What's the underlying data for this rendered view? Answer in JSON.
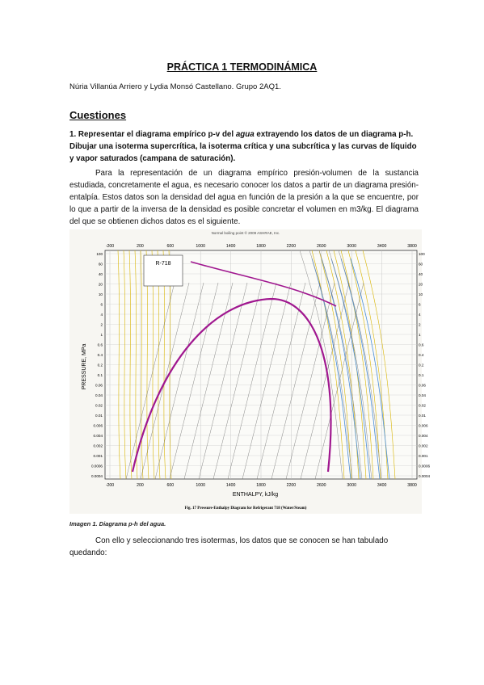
{
  "document": {
    "title": "PRÁCTICA 1 TERMODINÁMICA",
    "authors": "Núria Villanúa Arriero y Lydia Monsó Castellano. Grupo 2AQ1.",
    "section_heading": "Cuestiones",
    "question": {
      "number": "1.",
      "part1": "Representar el diagrama empírico p-v del ",
      "italic": "agua",
      "part2": " extrayendo los datos de un diagrama p-h. Dibujar una isoterma supercrítica, la isoterma crítica y una subcrítica y las curvas de líquido y vapor saturados (campana de saturación)."
    },
    "paragraph1": "Para la representación de un diagrama empírico presión-volumen de la sustancia estudiada, concretamente el agua, es necesario conocer los datos a partir de un diagrama presión-entalpía. Estos datos son la densidad del agua en función de la presión a la que se encuentre, por lo que a partir de la inversa de la densidad es posible concretar el volumen en m3/kg. El diagrama del que se obtienen dichos datos es el siguiente.",
    "figure": {
      "x_axis_label": "ENTHALPY, kJ/kg",
      "y_axis_label": "PRESSURE, MPa",
      "fig_caption": "Fig. 17   Pressure-Enthalpy Diagram for Refrigerant 718 (Water/Steam)",
      "top_note": "Normal boiling point © 2009 ASHRAE, Inc.",
      "box_label": "R-718",
      "x_ticks": [
        "-200",
        "200",
        "600",
        "1000",
        "1400",
        "1800",
        "2200",
        "2600",
        "3000",
        "3400",
        "3800"
      ],
      "top_ticks": [
        "-200",
        "200",
        "600",
        "1000",
        "1400",
        "1800",
        "2200",
        "2600",
        "3000",
        "3400",
        "3800"
      ],
      "left_ticks": [
        "100",
        "60",
        "40",
        "20",
        "10",
        "6",
        "4",
        "2",
        "1",
        "0.6",
        "0.4",
        "0.2",
        "0.1",
        "0.06",
        "0.04",
        "0.02",
        "0.01",
        "0.006",
        "0.004",
        "0.002",
        "0.001",
        "0.0006",
        "0.0004"
      ],
      "right_ticks": [
        "100",
        "60",
        "40",
        "20",
        "10",
        "6",
        "4",
        "2",
        "1",
        "0.6",
        "0.4",
        "0.2",
        "0.1",
        "0.06",
        "0.04",
        "0.02",
        "0.01",
        "0.006",
        "0.004",
        "0.002",
        "0.001",
        "0.0006",
        "0.0004"
      ]
    },
    "caption": "Imagen 1. Diagrama p-h del agua.",
    "paragraph2": "Con ello y seleccionando tres isotermas, los datos que se conocen se han tabulado quedando:"
  }
}
